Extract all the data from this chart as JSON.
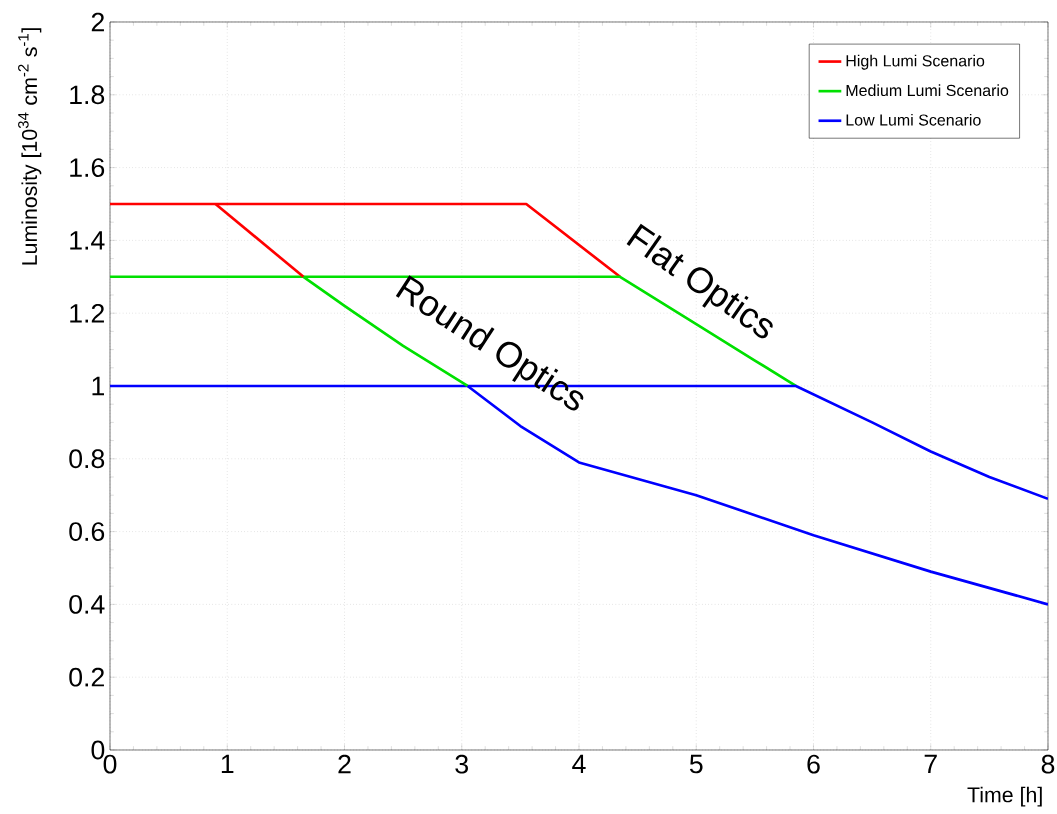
{
  "chart_data": {
    "type": "line",
    "xlabel": "Time [h]",
    "ylabel": "Luminosity [10$^{34}$ cm$^{-2}$ s$^{-1}$]",
    "xlim": [
      0,
      8
    ],
    "ylim": [
      0,
      2
    ],
    "xticks": [
      0,
      1,
      2,
      3,
      4,
      5,
      6,
      7,
      8
    ],
    "yticks": [
      0,
      0.2,
      0.4,
      0.6,
      0.8,
      1,
      1.2,
      1.4,
      1.6,
      1.8,
      2
    ],
    "grid": true,
    "legend": "top right",
    "marker": "none",
    "line_style": "solid",
    "series": [
      {
        "name": "High Lumi Scenario",
        "color": "#ff0000",
        "x": [
          0,
          3.55,
          4.35
        ],
        "values": [
          1.5,
          1.5,
          1.3
        ]
      },
      {
        "name": "Medium Lumi Scenario",
        "color": "#00e000",
        "x": [
          0,
          4.35,
          5.0,
          5.5,
          5.85
        ],
        "values": [
          1.3,
          1.3,
          1.17,
          1.07,
          1.0
        ]
      },
      {
        "name": "Low Lumi Scenario",
        "color": "#0000ff",
        "x": [
          0,
          5.85,
          6.5,
          7,
          7.5,
          8
        ],
        "values": [
          1.0,
          1.0,
          0.9,
          0.82,
          0.75,
          0.69
        ]
      },
      {
        "color": "#ff0000",
        "x": [
          0.9,
          1.65
        ],
        "values": [
          1.5,
          1.3
        ]
      },
      {
        "color": "#00e000",
        "x": [
          1.65,
          2,
          2.5,
          3.05
        ],
        "values": [
          1.3,
          1.22,
          1.11,
          1.0
        ]
      },
      {
        "color": "#0000ff",
        "x": [
          3.05,
          3.5,
          4,
          5,
          6,
          7,
          8
        ],
        "values": [
          1.0,
          0.89,
          0.79,
          0.7,
          0.59,
          0.49,
          0.4
        ]
      }
    ],
    "annotations": [
      "Flat Optics",
      "Round Optics"
    ]
  }
}
